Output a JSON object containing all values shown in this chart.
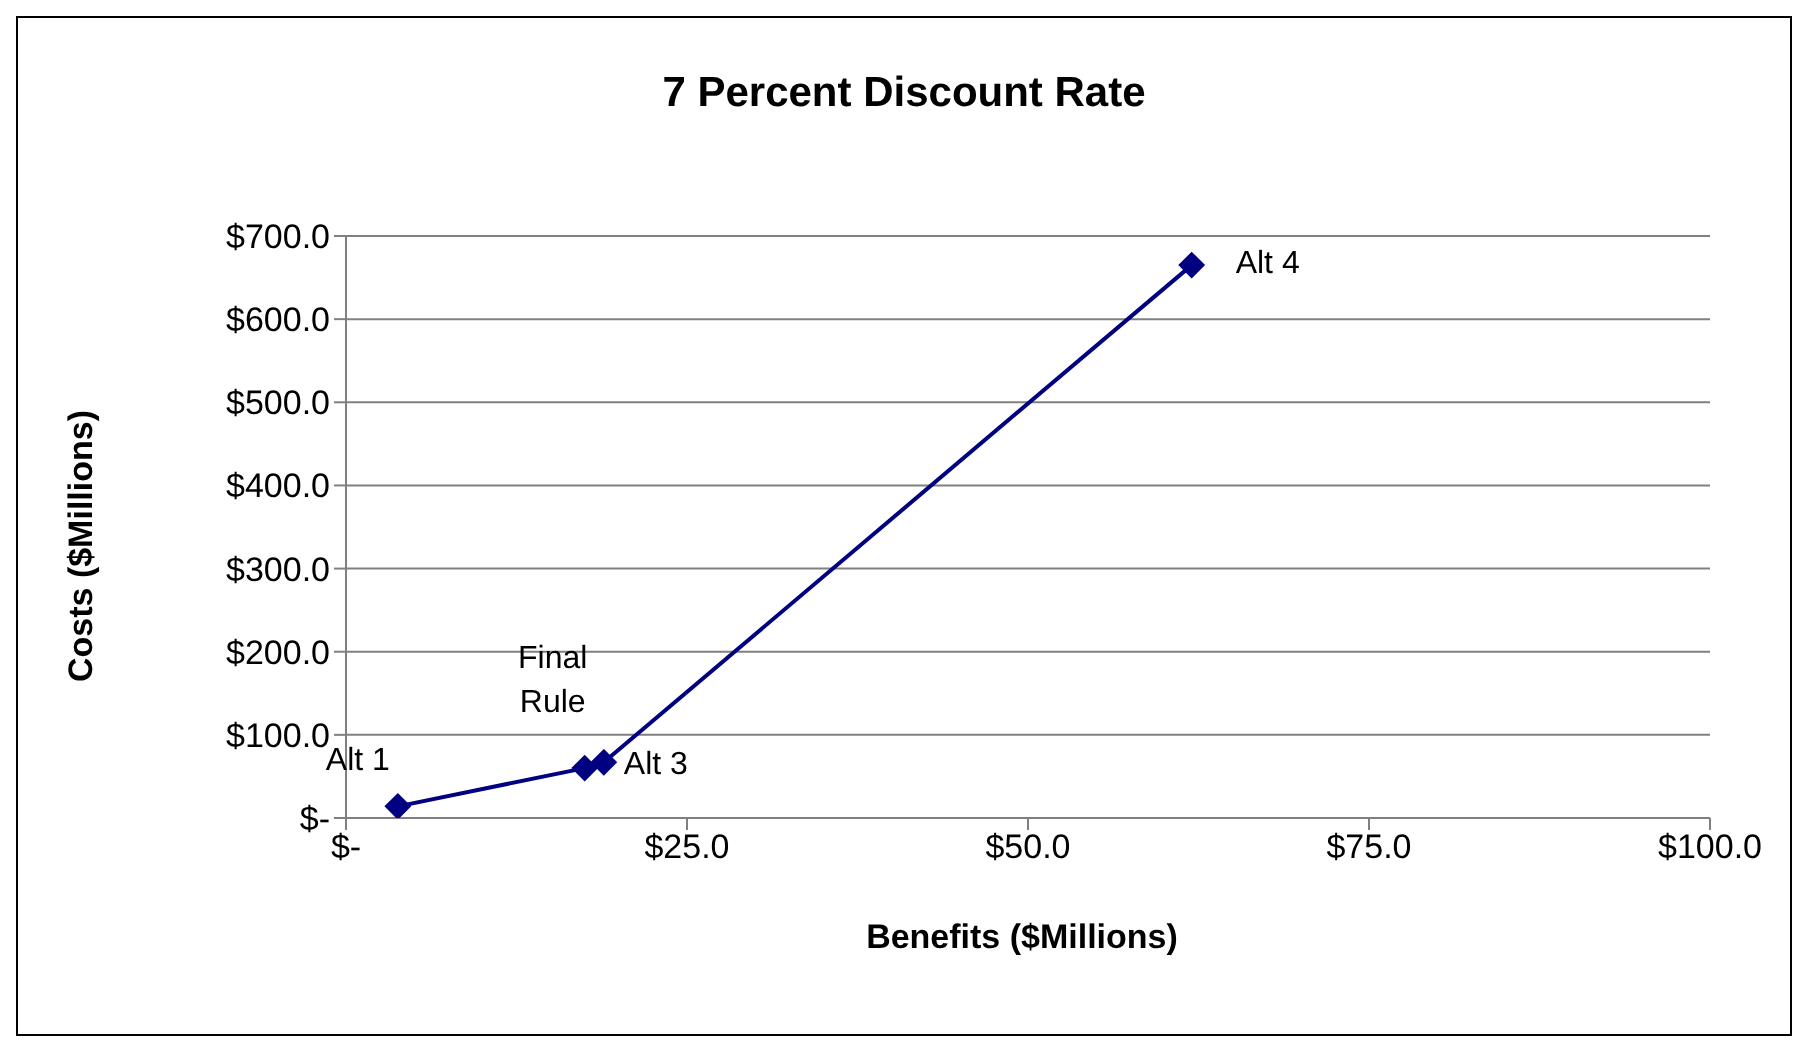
{
  "chart_data": {
    "type": "line",
    "title": "7 Percent Discount Rate",
    "xlabel": "Benefits ($Millions)",
    "ylabel": "Costs ($Millions)",
    "x": [
      3.8,
      17.5,
      18.9,
      62.0
    ],
    "series": [
      {
        "color": "#000080",
        "values": [
          14,
          60,
          67,
          665
        ]
      }
    ],
    "xlim": [
      0,
      100
    ],
    "xticks": [
      {
        "value": 0,
        "label": "$-"
      },
      {
        "value": 25,
        "label": "$25.0"
      },
      {
        "value": 50,
        "label": "$50.0"
      },
      {
        "value": 75,
        "label": "$75.0"
      },
      {
        "value": 100,
        "label": "$100.0"
      }
    ],
    "ylim": [
      0,
      700
    ],
    "yticks": [
      {
        "value": 0,
        "label": "$-"
      },
      {
        "value": 100,
        "label": "$100.0"
      },
      {
        "value": 200,
        "label": "$200.0"
      },
      {
        "value": 300,
        "label": "$300.0"
      },
      {
        "value": 400,
        "label": "$400.0"
      },
      {
        "value": 500,
        "label": "$500.0"
      },
      {
        "value": 600,
        "label": "$600.0"
      },
      {
        "value": 700,
        "label": "$700.0"
      }
    ],
    "grid": "y",
    "marker": "diamond",
    "line_style": "solid",
    "annotations": [
      {
        "text": "Alt 1",
        "x": 3.8,
        "y": 14
      },
      {
        "text": "Final Rule",
        "x": 17.5,
        "y": 60
      },
      {
        "text": "Alt 3",
        "x": 18.9,
        "y": 67
      },
      {
        "text": "Alt 4",
        "x": 62.0,
        "y": 665
      }
    ]
  }
}
